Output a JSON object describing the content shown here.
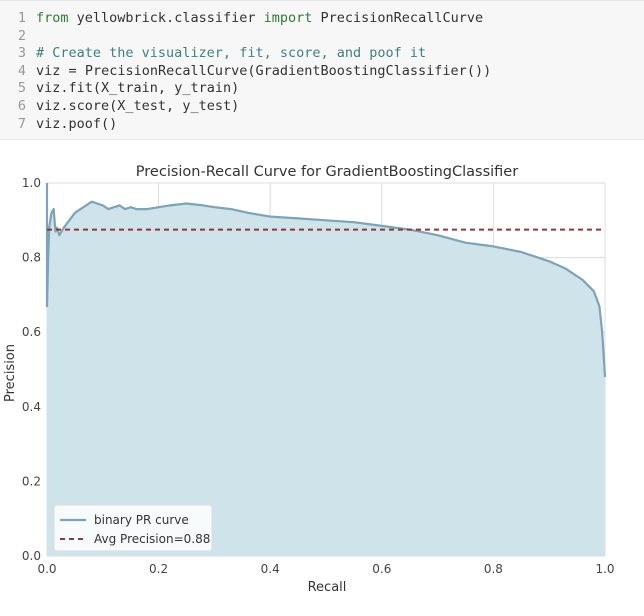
{
  "code": {
    "lines": [
      {
        "n": "1",
        "text": "from yellowbrick.classifier import PrecisionRecallCurve"
      },
      {
        "n": "2",
        "text": ""
      },
      {
        "n": "3",
        "text": "# Create the visualizer, fit, score, and poof it"
      },
      {
        "n": "4",
        "text": "viz = PrecisionRecallCurve(GradientBoostingClassifier())"
      },
      {
        "n": "5",
        "text": "viz.fit(X_train, y_train)"
      },
      {
        "n": "6",
        "text": "viz.score(X_test, y_test)"
      },
      {
        "n": "7",
        "text": "viz.poof()"
      }
    ]
  },
  "chart_data": {
    "type": "area",
    "title": "Precision-Recall Curve for GradientBoostingClassifier",
    "xlabel": "Recall",
    "ylabel": "Precision",
    "xlim": [
      0,
      1
    ],
    "ylim": [
      0,
      1
    ],
    "xticks": [
      "0.0",
      "0.2",
      "0.4",
      "0.6",
      "0.8",
      "1.0"
    ],
    "yticks": [
      "0.0",
      "0.2",
      "0.4",
      "0.6",
      "0.8",
      "1.0"
    ],
    "grid": true,
    "legend_position": "bottom-left",
    "series": [
      {
        "name": "binary PR curve",
        "color": "#7da3b5",
        "fill": "#cfe3ea",
        "x": [
          0.0,
          0.0,
          0.002,
          0.004,
          0.006,
          0.008,
          0.012,
          0.015,
          0.018,
          0.022,
          0.026,
          0.03,
          0.035,
          0.04,
          0.05,
          0.06,
          0.07,
          0.08,
          0.09,
          0.1,
          0.11,
          0.12,
          0.13,
          0.14,
          0.15,
          0.16,
          0.18,
          0.2,
          0.22,
          0.25,
          0.28,
          0.3,
          0.33,
          0.36,
          0.4,
          0.45,
          0.5,
          0.55,
          0.6,
          0.65,
          0.7,
          0.75,
          0.8,
          0.85,
          0.9,
          0.93,
          0.96,
          0.98,
          0.99,
          0.995,
          1.0
        ],
        "y": [
          1.0,
          0.67,
          0.8,
          0.88,
          0.9,
          0.92,
          0.93,
          0.87,
          0.88,
          0.86,
          0.87,
          0.88,
          0.89,
          0.9,
          0.92,
          0.93,
          0.94,
          0.95,
          0.945,
          0.94,
          0.93,
          0.935,
          0.94,
          0.93,
          0.935,
          0.93,
          0.93,
          0.935,
          0.94,
          0.945,
          0.94,
          0.935,
          0.93,
          0.92,
          0.91,
          0.905,
          0.9,
          0.895,
          0.885,
          0.875,
          0.86,
          0.84,
          0.83,
          0.815,
          0.79,
          0.77,
          0.74,
          0.71,
          0.67,
          0.6,
          0.48
        ]
      },
      {
        "name": "Avg Precision=0.88",
        "color": "#8b3a3a",
        "style": "dashed",
        "x": [
          0.0,
          1.0
        ],
        "y": [
          0.875,
          0.875
        ]
      }
    ]
  }
}
